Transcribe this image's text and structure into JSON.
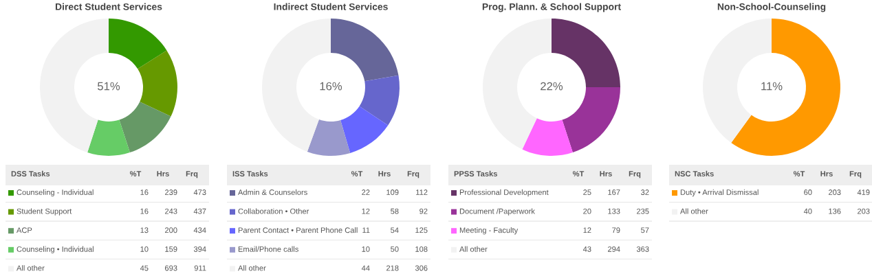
{
  "chart_data": [
    {
      "type": "donut",
      "title": "Direct Student Services",
      "categories": [
        "Counseling - Individual",
        "Student Support",
        "ACP",
        "Counseling • Individual",
        "All other"
      ],
      "values": [
        16,
        16,
        13,
        10,
        45
      ],
      "colors": [
        "#339900",
        "#669900",
        "#669966",
        "#66cc66",
        "#f2f2f2"
      ],
      "data_labels": true,
      "legend": "bottom",
      "annotations": [
        "51%",
        "DSS Tasks",
        "%T",
        "Hrs",
        "Frq",
        "239",
        "473",
        "243",
        "437",
        "200",
        "434",
        "159",
        "394",
        "693",
        "911"
      ]
    },
    {
      "type": "donut",
      "title": "Indirect Student Services",
      "categories": [
        "Admin & Counselors",
        "Collaboration • Other",
        "Parent Contact • Parent Phone Call",
        "Email/Phone calls",
        "All other"
      ],
      "values": [
        22,
        12,
        11,
        10,
        44
      ],
      "colors": [
        "#666699",
        "#6666cc",
        "#6666ff",
        "#9999cc",
        "#f2f2f2"
      ],
      "data_labels": true,
      "legend": "bottom",
      "annotations": [
        "16%",
        "ISS Tasks",
        "%T",
        "Hrs",
        "Frq",
        "109",
        "112",
        "58",
        "92",
        "54",
        "125",
        "50",
        "108",
        "218",
        "306"
      ]
    },
    {
      "type": "donut",
      "title": "Prog. Plann. & School Support",
      "categories": [
        "Professional Development",
        "Document /Paperwork",
        "Meeting - Faculty",
        "All other"
      ],
      "values": [
        25,
        20,
        12,
        43
      ],
      "colors": [
        "#663366",
        "#993399",
        "#ff66ff",
        "#f2f2f2"
      ],
      "data_labels": true,
      "legend": "bottom",
      "annotations": [
        "22%",
        "PPSS Tasks",
        "%T",
        "Hrs",
        "Frq",
        "167",
        "32",
        "133",
        "235",
        "79",
        "57",
        "294",
        "363"
      ]
    },
    {
      "type": "donut",
      "title": "Non-School-Counseling",
      "categories": [
        "Duty • Arrival Dismissal",
        "All other"
      ],
      "values": [
        60,
        40
      ],
      "colors": [
        "#ff9900",
        "#f2f2f2"
      ],
      "data_labels": true,
      "legend": "bottom",
      "annotations": [
        "11%",
        "NSC Tasks",
        "%T",
        "Hrs",
        "Frq",
        "203",
        "419",
        "136",
        "203"
      ]
    }
  ]
}
